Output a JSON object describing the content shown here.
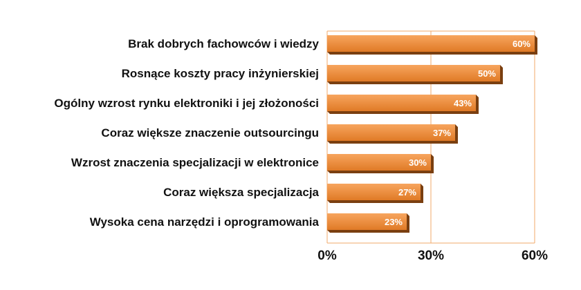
{
  "chart_data": {
    "type": "bar",
    "orientation": "horizontal",
    "categories": [
      "Brak dobrych fachowców i wiedzy",
      "Rosnące koszty pracy inżynierskiej",
      "Ogólny wzrost rynku elektroniki i jej złożoności",
      "Coraz większe znaczenie outsourcingu",
      "Wzrost znaczenia specjalizacji w elektronice",
      "Coraz większa specjalizacja",
      "Wysoka cena narzędzi i oprogramowania"
    ],
    "values": [
      60,
      50,
      43,
      37,
      30,
      27,
      23
    ],
    "value_labels": [
      "60%",
      "50%",
      "43%",
      "37%",
      "30%",
      "27%",
      "23%"
    ],
    "xlim": [
      0,
      60
    ],
    "xticks": [
      0,
      30,
      60
    ],
    "xtick_labels": [
      "0%",
      "30%",
      "60%"
    ],
    "title": "",
    "xlabel": "",
    "ylabel": "",
    "grid": "vertical",
    "legend": "none",
    "colors": {
      "bar_light": "#f7a55e",
      "bar_dark": "#e07a26",
      "bar_shadow": "#7a3f10",
      "grid": "#f2a86a"
    }
  }
}
